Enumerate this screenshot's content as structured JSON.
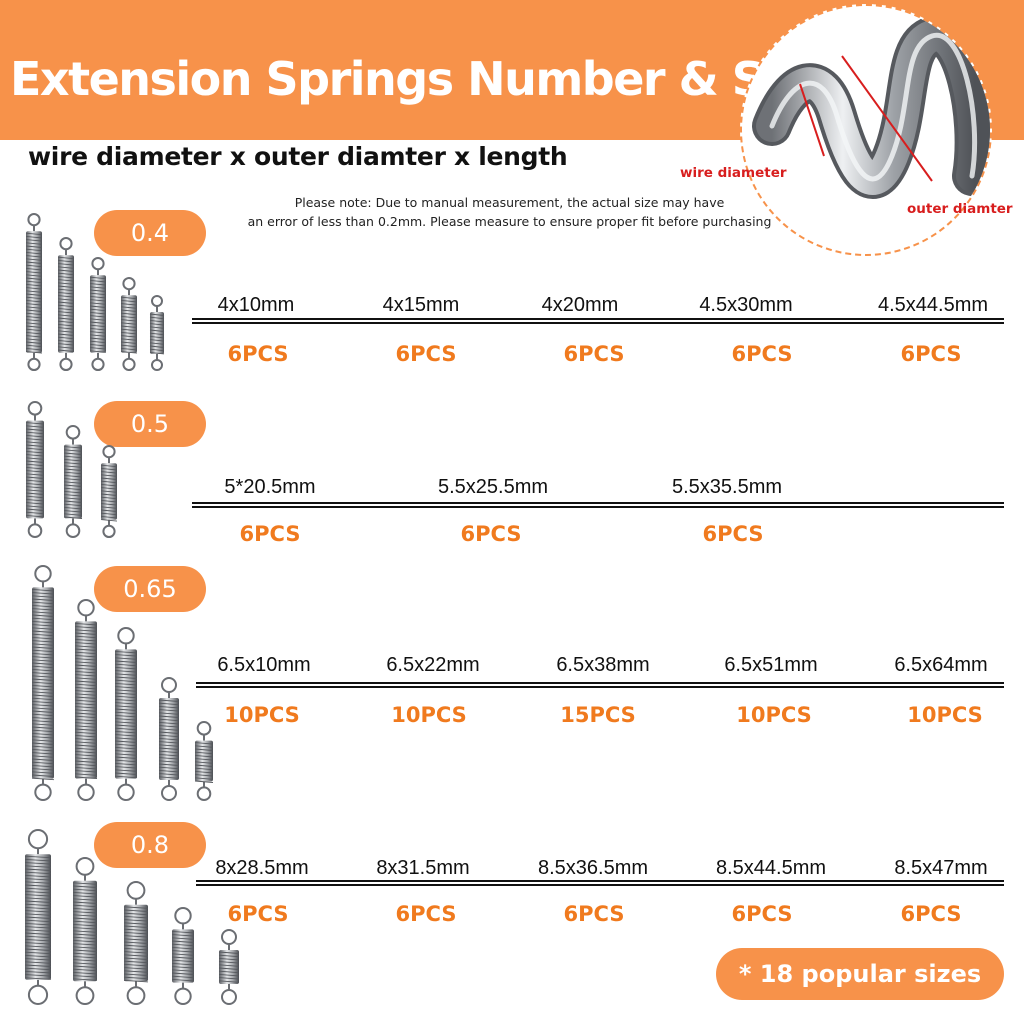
{
  "header": {
    "title": "Extension Springs Number & Size",
    "subtitle": "wire diameter x outer diamter x length"
  },
  "note": {
    "line1": "Please note: Due to manual measurement, the actual size may have",
    "line2": "an error of less than 0.2mm.  Please measure to ensure proper fit before purchasing"
  },
  "diagram": {
    "wire_label": "wire diameter",
    "outer_label": "outer diamter"
  },
  "groups": [
    {
      "wire": "0.4",
      "items": [
        {
          "size": "4x10mm",
          "pcs": "6PCS"
        },
        {
          "size": "4x15mm",
          "pcs": "6PCS"
        },
        {
          "size": "4x20mm",
          "pcs": "6PCS"
        },
        {
          "size": "4.5x30mm",
          "pcs": "6PCS"
        },
        {
          "size": "4.5x44.5mm",
          "pcs": "6PCS"
        }
      ]
    },
    {
      "wire": "0.5",
      "items": [
        {
          "size": "5*20.5mm",
          "pcs": "6PCS"
        },
        {
          "size": "5.5x25.5mm",
          "pcs": "6PCS"
        },
        {
          "size": "5.5x35.5mm",
          "pcs": "6PCS"
        }
      ]
    },
    {
      "wire": "0.65",
      "items": [
        {
          "size": "6.5x10mm",
          "pcs": "10PCS"
        },
        {
          "size": "6.5x22mm",
          "pcs": "10PCS"
        },
        {
          "size": "6.5x38mm",
          "pcs": "15PCS"
        },
        {
          "size": "6.5x51mm",
          "pcs": "10PCS"
        },
        {
          "size": "6.5x64mm",
          "pcs": "10PCS"
        }
      ]
    },
    {
      "wire": "0.8",
      "items": [
        {
          "size": "8x28.5mm",
          "pcs": "6PCS"
        },
        {
          "size": "8x31.5mm",
          "pcs": "6PCS"
        },
        {
          "size": "8.5x36.5mm",
          "pcs": "6PCS"
        },
        {
          "size": "8.5x44.5mm",
          "pcs": "6PCS"
        },
        {
          "size": "8.5x47mm",
          "pcs": "6PCS"
        }
      ]
    }
  ],
  "footer": {
    "badge": "* 18 popular sizes"
  },
  "colors": {
    "accent": "#f7924a",
    "pcs_text": "#f07a1e",
    "diagram_label": "#d81e1e"
  }
}
